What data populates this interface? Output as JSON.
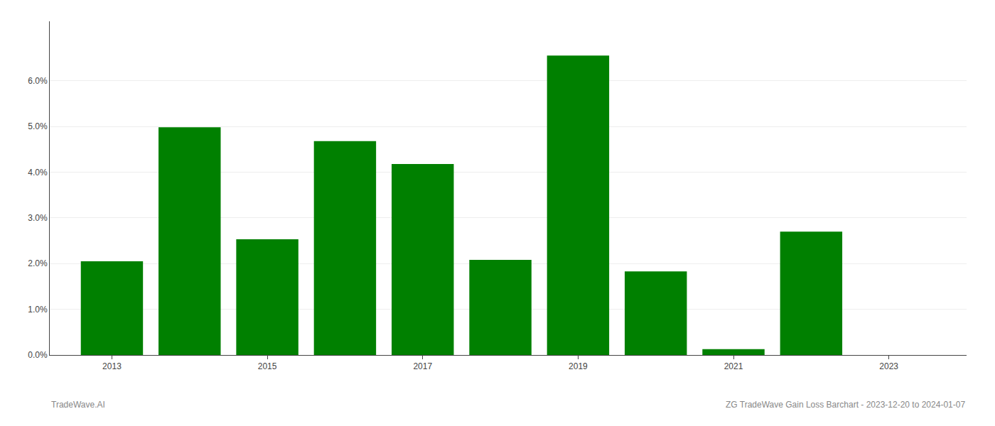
{
  "chart_data": {
    "type": "bar",
    "x": [
      2013,
      2014,
      2015,
      2016,
      2017,
      2018,
      2019,
      2020,
      2021,
      2022,
      2023
    ],
    "values": [
      0.0205,
      0.0498,
      0.0253,
      0.0468,
      0.0418,
      0.0208,
      0.0655,
      0.0183,
      0.0013,
      0.027,
      0.0
    ],
    "color": "#008000",
    "xlim": [
      2012.2,
      2024.0
    ],
    "xticks": [
      2013,
      2015,
      2017,
      2019,
      2021,
      2023
    ],
    "ylim": [
      0,
      0.073
    ],
    "yticks": [
      {
        "value": 0.0,
        "label": "0.0%"
      },
      {
        "value": 0.01,
        "label": "1.0%"
      },
      {
        "value": 0.02,
        "label": "2.0%"
      },
      {
        "value": 0.03,
        "label": "3.0%"
      },
      {
        "value": 0.04,
        "label": "4.0%"
      },
      {
        "value": 0.05,
        "label": "5.0%"
      },
      {
        "value": 0.06,
        "label": "6.0%"
      }
    ],
    "grid": true,
    "annotations": [
      "TradeWave.AI",
      "ZG TradeWave Gain Loss Barchart - 2023-12-20 to 2024-01-07"
    ]
  }
}
